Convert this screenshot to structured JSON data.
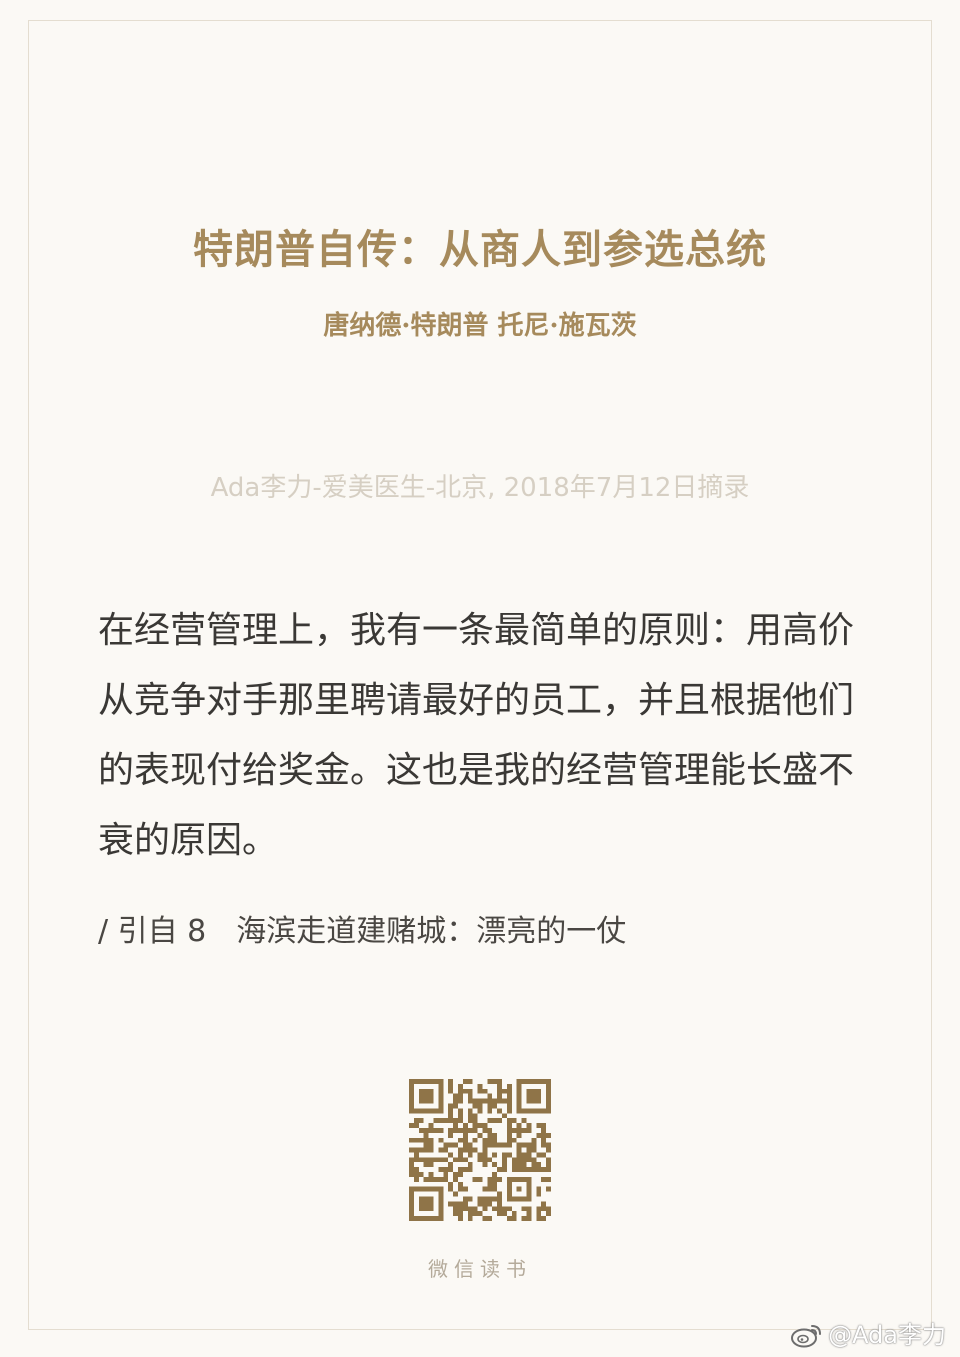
{
  "book": {
    "title": "特朗普自传：从商人到参选总统",
    "authors": "唐纳德·特朗普 托尼·施瓦茨"
  },
  "excerpt_meta": "Ada李力-爱美医生-北京, 2018年7月12日摘录",
  "quote": {
    "text": "在经营管理上，我有一条最简单的原则：用高价从竞争对手那里聘请最好的员工，并且根据他们的表现付给奖金。这也是我的经营管理能长盛不衰的原因。",
    "source": "/ 引自 8　海滨走道建赌城：漂亮的一仗"
  },
  "footer": {
    "qr_icon": "qr-code-icon",
    "app_label": "微信读书"
  },
  "watermark": {
    "icon": "weibo-icon",
    "handle": "@Ada李力"
  },
  "colors": {
    "background": "#fbf9f5",
    "title_gold": "#a68a5c",
    "meta_gray": "#d6cfc3",
    "body_text": "#3a3835"
  }
}
